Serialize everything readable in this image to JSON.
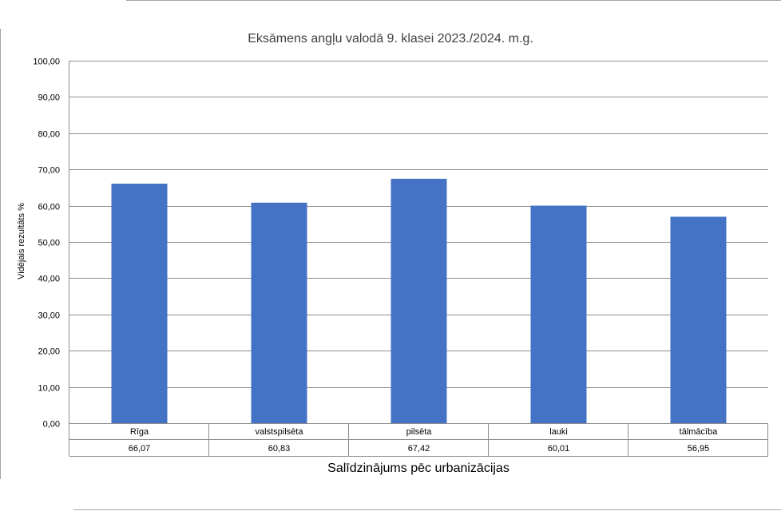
{
  "chart_data": {
    "type": "bar",
    "title": "Eksāmens angļu valodā 9. klasei 2023./2024. m.g.",
    "xlabel": "Salīdzinājums pēc urbanizācijas",
    "ylabel": "Vidējais rezultāts %",
    "ylim": [
      0,
      100
    ],
    "ytick_step": 10,
    "ytick_labels": [
      "0,00",
      "10,00",
      "20,00",
      "30,00",
      "40,00",
      "50,00",
      "60,00",
      "70,00",
      "80,00",
      "90,00",
      "100,00"
    ],
    "categories": [
      "Rīga",
      "valstspilsēta",
      "pilsēta",
      "lauki",
      "tālmācība"
    ],
    "values": [
      66.07,
      60.83,
      67.42,
      60.01,
      56.95
    ],
    "value_labels": [
      "66,07",
      "60,83",
      "67,42",
      "60,01",
      "56,95"
    ],
    "grid": true,
    "legend": "none",
    "data_table": true,
    "bar_color": "#4472C4"
  }
}
